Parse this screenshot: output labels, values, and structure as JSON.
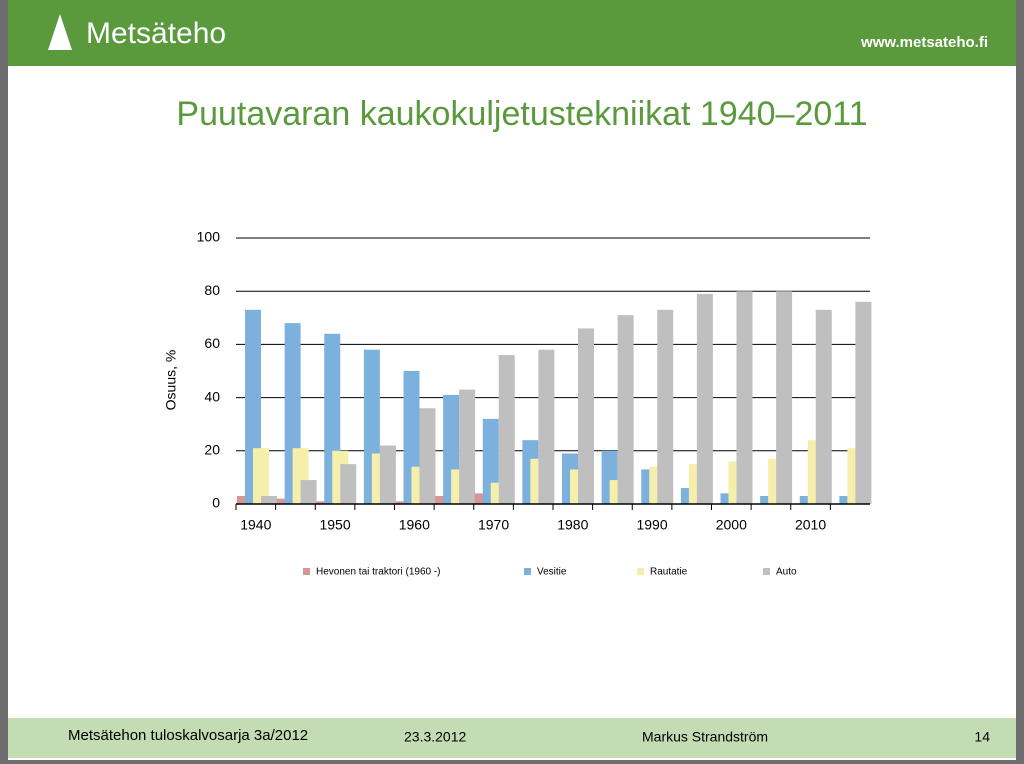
{
  "header": {
    "logo": "Metsäteho",
    "url": "www.metsateho.fi"
  },
  "chart_data": {
    "type": "bar",
    "title": "Puutavaran kaukokuljetustekniikat 1940–2011",
    "y_label": "Osuus, %",
    "categories": [
      "1940",
      null,
      "1950",
      null,
      "1960",
      null,
      "1970",
      null,
      "1980",
      null,
      "1990",
      null,
      "2000",
      null,
      "2010",
      null
    ],
    "series": [
      {
        "name": "Hevonen tai traktori (1960 -)",
        "color": "#d99594",
        "values": [
          3,
          2,
          1,
          0,
          1,
          3,
          4,
          0,
          0,
          0,
          0,
          0,
          0,
          0,
          0,
          0
        ]
      },
      {
        "name": "Vesitie",
        "color": "#7cb1de",
        "values": [
          73,
          68,
          64,
          58,
          50,
          41,
          32,
          24,
          19,
          20,
          13,
          6,
          4,
          3,
          3,
          3
        ]
      },
      {
        "name": "Rautatie",
        "color": "#f6efab",
        "values": [
          21,
          21,
          20,
          19,
          14,
          13,
          8,
          17,
          13,
          9,
          14,
          15,
          16,
          17,
          24,
          21
        ]
      },
      {
        "name": "Auto",
        "color": "#bfbfbf",
        "values": [
          3,
          9,
          15,
          22,
          36,
          43,
          56,
          58,
          66,
          71,
          73,
          79,
          80,
          80,
          73,
          76
        ]
      }
    ],
    "ylim": [
      0,
      100
    ],
    "yticks": [
      0,
      20,
      40,
      60,
      80,
      100
    ],
    "grid": true
  },
  "footer": {
    "series": "Metsätehon tuloskalvosarja  3a/2012",
    "date": "23.3.2012",
    "author": "Markus Strandström",
    "page": "14"
  }
}
